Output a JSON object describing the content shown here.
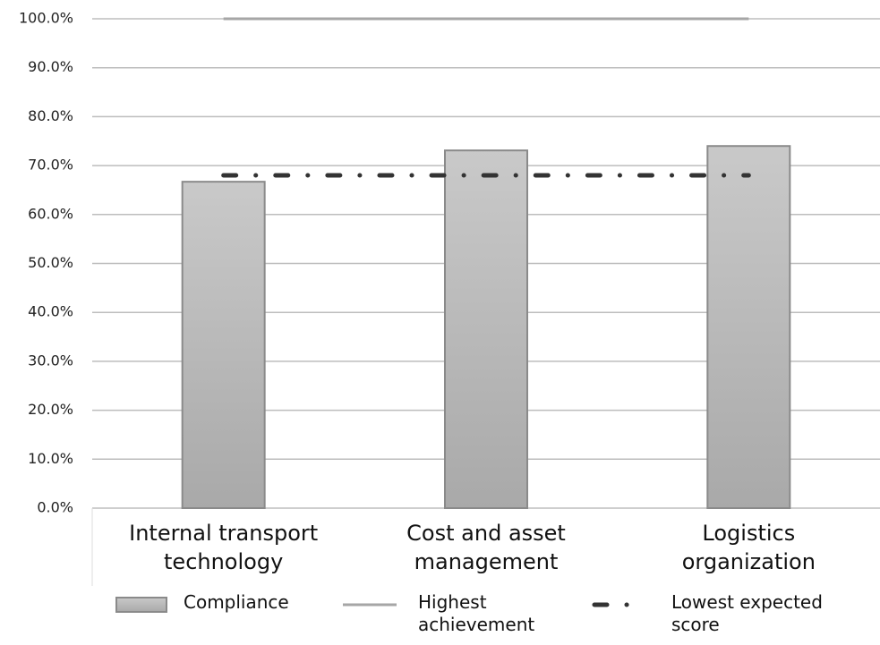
{
  "chart_data": {
    "type": "bar",
    "categories": [
      "Internal transport technology",
      "Cost and asset management",
      "Logistics organization"
    ],
    "series": [
      {
        "name": "Compliance",
        "type": "bar",
        "color": "#b4b4b4",
        "values": [
          66.7,
          73.1,
          74.0
        ]
      },
      {
        "name": "Highest achievement",
        "type": "line",
        "color": "#a6a6a6",
        "values": [
          100,
          100,
          100
        ]
      },
      {
        "name": "Lowest expected score",
        "type": "dashdot",
        "color": "#333333",
        "values": [
          68,
          68,
          68
        ]
      }
    ],
    "ylim": [
      0,
      100
    ],
    "yticks": [
      {
        "value": 0,
        "label": "0.0%"
      },
      {
        "value": 10,
        "label": "10.0%"
      },
      {
        "value": 20,
        "label": "20.0%"
      },
      {
        "value": 30,
        "label": "30.0%"
      },
      {
        "value": 40,
        "label": "40.0%"
      },
      {
        "value": 50,
        "label": "50.0%"
      },
      {
        "value": 60,
        "label": "60.0%"
      },
      {
        "value": 70,
        "label": "70.0%"
      },
      {
        "value": 80,
        "label": "80.0%"
      },
      {
        "value": 90,
        "label": "90.0%"
      },
      {
        "value": 100,
        "label": "100.0%"
      }
    ],
    "grid": true
  }
}
